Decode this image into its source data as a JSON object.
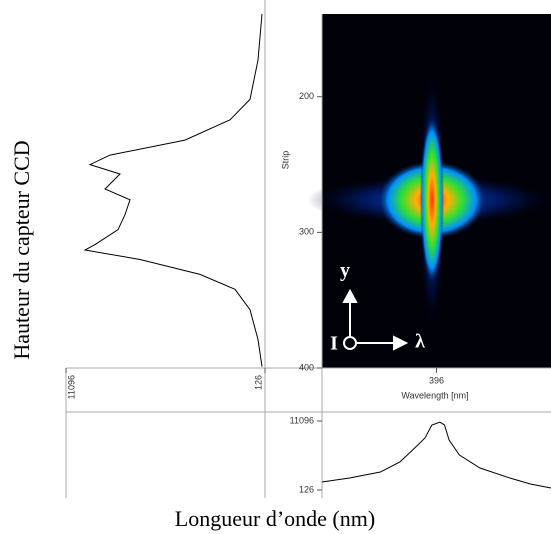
{
  "title_y": "Hauteur du capteur CCD",
  "title_x": "Longueur d’onde (nm)",
  "inset": {
    "y": "y",
    "x": "λ",
    "origin": "I"
  },
  "chart_data": [
    {
      "type": "line",
      "orientation": "vertical",
      "color": "#000000",
      "x": [
        139,
        173,
        202,
        217,
        232,
        243,
        250,
        257,
        268,
        276,
        287,
        298,
        309,
        313,
        320,
        331,
        342,
        357,
        379,
        399
      ],
      "values": [
        292,
        512,
        953,
        2055,
        4536,
        8670,
        9773,
        8119,
        8946,
        7568,
        7844,
        8229,
        9497,
        10049,
        7017,
        3709,
        1780,
        953,
        512,
        292
      ],
      "xlabel": "Strip",
      "xlim": [
        139,
        400
      ],
      "xticks": [
        200,
        300,
        400
      ],
      "ylim": [
        126,
        11096
      ],
      "yticks": [
        11096,
        126
      ]
    },
    {
      "type": "line",
      "orientation": "horizontal",
      "color": "#000000",
      "x": [
        395.0,
        395.24,
        395.51,
        395.68,
        395.81,
        395.9,
        395.96,
        396.03,
        396.07,
        396.11,
        396.2,
        396.38,
        396.64,
        396.82,
        397.0
      ],
      "values": [
        1398,
        2034,
        2988,
        4578,
        6804,
        8394,
        10461,
        10900,
        10461,
        8076,
        5691,
        3624,
        2034,
        1080,
        444
      ],
      "xlabel": "Wavelength [nm]",
      "xlim": [
        395,
        397
      ],
      "xticks": [
        396
      ],
      "ylim": [
        126,
        11096
      ],
      "yticks": [
        11096,
        126
      ]
    }
  ]
}
